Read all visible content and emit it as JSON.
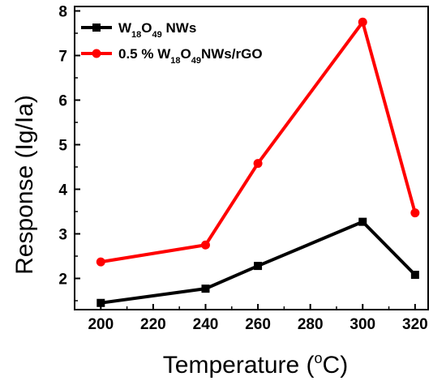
{
  "chart_data": {
    "type": "line",
    "xlabel": "Temperature (",
    "xlabel_sup": "o",
    "xlabel_end": "C)",
    "ylabel": "Response (Ig/Ia)",
    "xlim": [
      190,
      325
    ],
    "ylim": [
      1.3,
      8.1
    ],
    "x_ticks": [
      200,
      220,
      240,
      260,
      280,
      300,
      320
    ],
    "y_ticks": [
      2,
      3,
      4,
      5,
      6,
      7,
      8
    ],
    "legend_position": "top-left",
    "frame": "box",
    "series": [
      {
        "name": "W18O49 NWs",
        "legend_parts": [
          {
            "text": "W",
            "sub": false
          },
          {
            "text": "18",
            "sub": true
          },
          {
            "text": "O",
            "sub": false
          },
          {
            "text": "49",
            "sub": true
          },
          {
            "text": " NWs",
            "sub": false
          }
        ],
        "color": "#000000",
        "marker": "square",
        "x": [
          200,
          240,
          260,
          300,
          320
        ],
        "y": [
          1.45,
          1.77,
          2.28,
          3.27,
          2.08
        ]
      },
      {
        "name": "0.5 % W18O49NWs/rGO",
        "legend_parts": [
          {
            "text": "0.5 % W",
            "sub": false
          },
          {
            "text": "18",
            "sub": true
          },
          {
            "text": "O",
            "sub": false
          },
          {
            "text": "49",
            "sub": true
          },
          {
            "text": "NWs/rGO",
            "sub": false
          }
        ],
        "color": "#ff0000",
        "marker": "circle",
        "x": [
          200,
          240,
          260,
          300,
          320
        ],
        "y": [
          2.37,
          2.75,
          4.58,
          7.75,
          3.47
        ]
      }
    ]
  }
}
